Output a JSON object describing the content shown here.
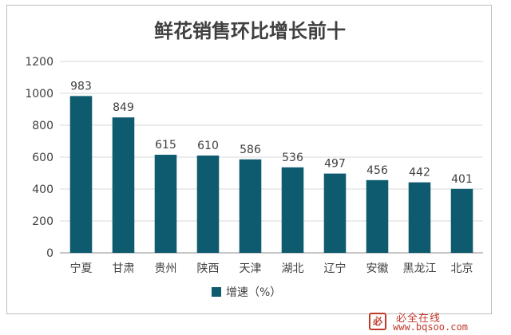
{
  "chart_data": {
    "type": "bar",
    "title": "鲜花销售环比增长前十",
    "categories": [
      "宁夏",
      "甘肃",
      "贵州",
      "陕西",
      "天津",
      "湖北",
      "辽宁",
      "安徽",
      "黑龙江",
      "北京"
    ],
    "series": [
      {
        "name": "增速（%）",
        "values": [
          983,
          849,
          615,
          610,
          586,
          536,
          497,
          456,
          442,
          401
        ]
      }
    ],
    "ylim": [
      0,
      1200
    ],
    "yticks": [
      0,
      200,
      400,
      600,
      800,
      1000,
      1200
    ],
    "grid": true,
    "legend": "bottom",
    "bar_color": "#0e5a6e",
    "data_labels": true
  },
  "watermark": {
    "badge": "必",
    "name": "必全在线",
    "url": "www.bqsoo.com"
  }
}
